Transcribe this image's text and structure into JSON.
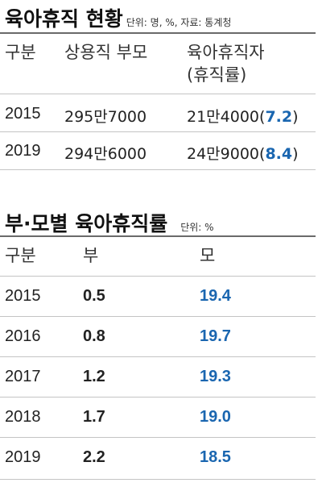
{
  "table1": {
    "title": "육아휴직 현황",
    "unit_note": "단위: 명, %, 자료: 통계청",
    "headers": {
      "c1": "구분",
      "c2": "상용직 부모",
      "c3_line1": "육아휴직자",
      "c3_line2": "(휴직률)"
    },
    "rows": [
      {
        "year": "2015",
        "parents": "295만7000",
        "leave": "21만4000",
        "open": "(",
        "rate": "7.2",
        "close": ")"
      },
      {
        "year": "2019",
        "parents": "294만6000",
        "leave": "24만9000",
        "open": "(",
        "rate": "8.4",
        "close": ")"
      }
    ]
  },
  "table2": {
    "title": "부·모별 육아휴직률",
    "unit_note": "단위: %",
    "headers": {
      "c1": "구분",
      "c2": "부",
      "c3": "모"
    },
    "rows": [
      {
        "year": "2015",
        "father": "0.5",
        "mother": "19.4"
      },
      {
        "year": "2016",
        "father": "0.8",
        "mother": "19.7"
      },
      {
        "year": "2017",
        "father": "1.2",
        "mother": "19.3"
      },
      {
        "year": "2018",
        "father": "1.7",
        "mother": "19.0"
      },
      {
        "year": "2019",
        "father": "2.2",
        "mother": "18.5"
      }
    ]
  },
  "colors": {
    "accent_blue": "#1a66b0",
    "text": "#222222",
    "rule": "#6a6a6a"
  }
}
